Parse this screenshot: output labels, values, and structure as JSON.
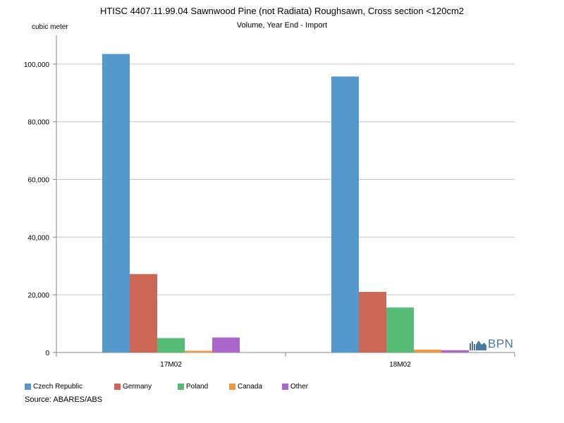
{
  "chart_data": {
    "type": "bar",
    "title": "HTISC 4407.11.99.04 Sawnwood Pine (not Radiata) Roughsawn, Cross section <120cm2",
    "subtitle": "Volume, Year End - Import",
    "ylabel": "cubic meter",
    "xlabel": "",
    "categories": [
      "17M02",
      "18M02"
    ],
    "ylim": [
      0,
      110000
    ],
    "yticks": [
      0,
      20000,
      40000,
      60000,
      80000,
      100000
    ],
    "ytick_labels": [
      "0",
      "20,000",
      "40,000",
      "60,000",
      "80,000",
      "100,000"
    ],
    "grid": true,
    "legend_position": "bottom-left",
    "series": [
      {
        "name": "Czech Republic",
        "color": "#5599cc",
        "values": [
          103500,
          95700
        ]
      },
      {
        "name": "Germany",
        "color": "#cc6655",
        "values": [
          27200,
          21000
        ]
      },
      {
        "name": "Poland",
        "color": "#55bb77",
        "values": [
          5000,
          15600
        ]
      },
      {
        "name": "Canada",
        "color": "#ee9944",
        "values": [
          600,
          1000
        ]
      },
      {
        "name": "Other",
        "color": "#aa66cc",
        "values": [
          5200,
          800
        ]
      }
    ]
  },
  "source": "Source: ABARES/ABS",
  "watermark": {
    "text": "BPN",
    "icon": "bpn-logo-icon",
    "color": "#4a78a6"
  }
}
